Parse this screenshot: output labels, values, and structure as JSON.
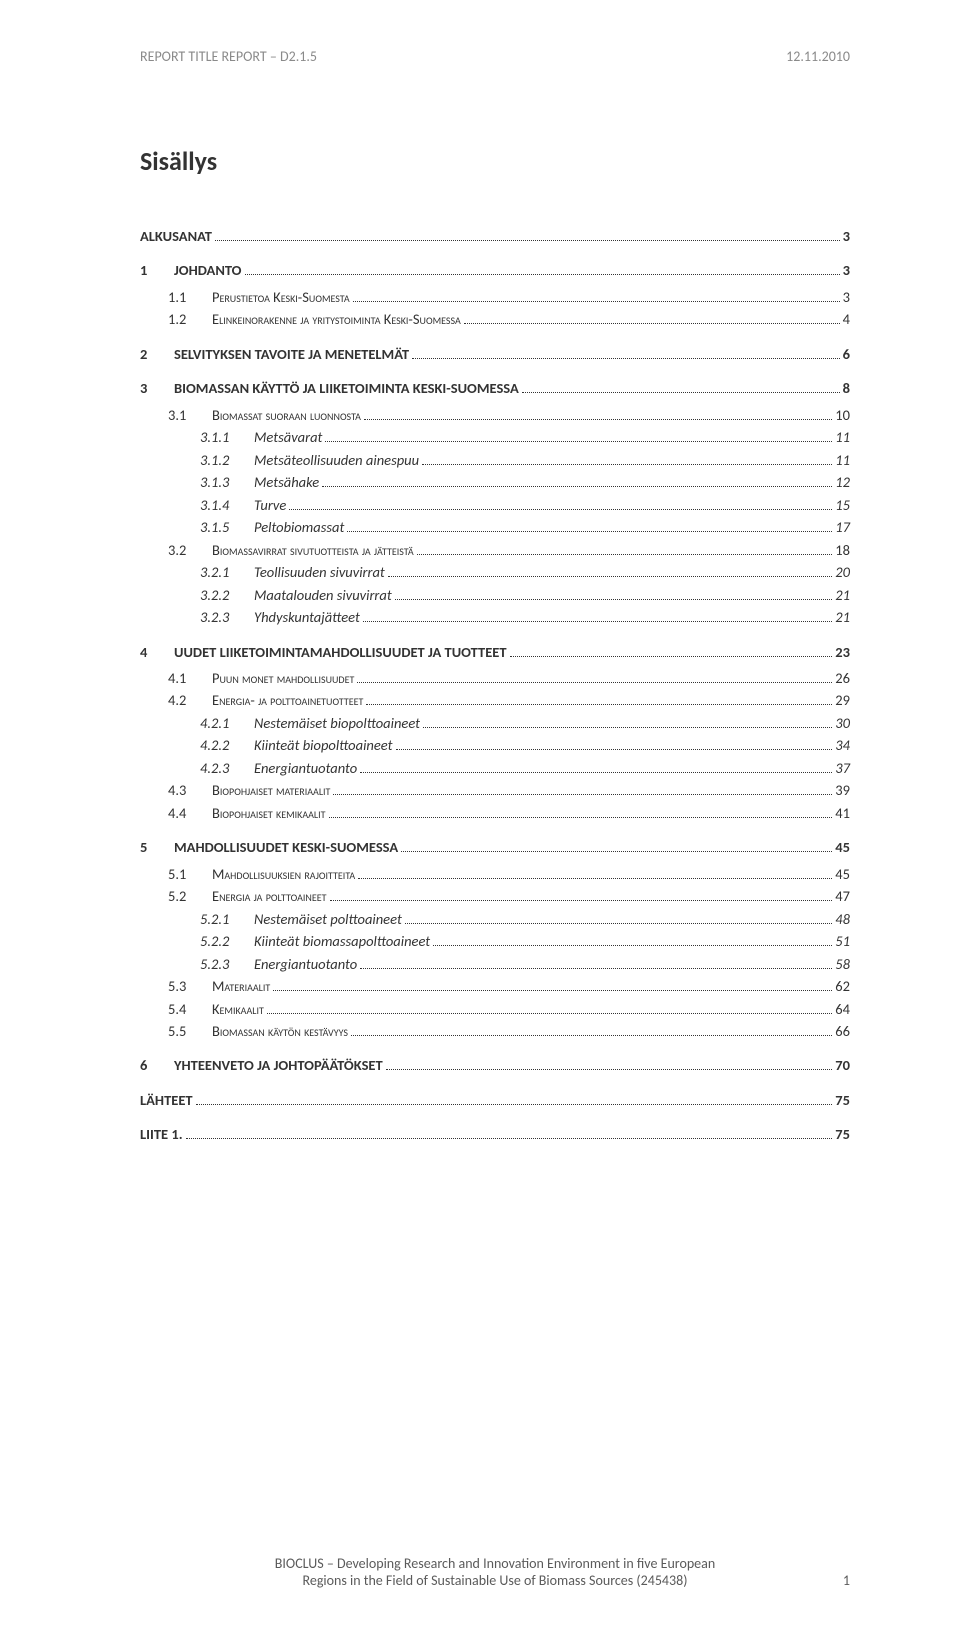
{
  "header": {
    "left": "REPORT TITLE REPORT – D2.1.5",
    "right": "12.11.2010"
  },
  "title": "Sisällys",
  "toc": [
    {
      "level": 1,
      "num": "",
      "label": "ALKUSANAT",
      "page": "3",
      "noindent": true
    },
    {
      "level": 1,
      "num": "1",
      "label": "JOHDANTO",
      "page": "3"
    },
    {
      "level": 2,
      "num": "1.1",
      "label": "Perustietoa Keski-Suomesta",
      "page": "3",
      "sc": true
    },
    {
      "level": 2,
      "num": "1.2",
      "label": "Elinkeinorakenne ja yritystoiminta Keski-Suomessa",
      "page": "4",
      "sc": true
    },
    {
      "level": 1,
      "num": "2",
      "label": "SELVITYKSEN TAVOITE JA MENETELMÄT",
      "page": "6"
    },
    {
      "level": 1,
      "num": "3",
      "label": "BIOMASSAN KÄYTTÖ JA LIIKETOIMINTA KESKI-SUOMESSA",
      "page": "8"
    },
    {
      "level": 2,
      "num": "3.1",
      "label": "Biomassat suoraan luonnosta",
      "page": "10",
      "sc": true
    },
    {
      "level": 3,
      "num": "3.1.1",
      "label": "Metsävarat",
      "page": "11"
    },
    {
      "level": 3,
      "num": "3.1.2",
      "label": "Metsäteollisuuden ainespuu",
      "page": "11"
    },
    {
      "level": 3,
      "num": "3.1.3",
      "label": "Metsähake",
      "page": "12"
    },
    {
      "level": 3,
      "num": "3.1.4",
      "label": "Turve",
      "page": "15"
    },
    {
      "level": 3,
      "num": "3.1.5",
      "label": "Peltobiomassat",
      "page": "17"
    },
    {
      "level": 2,
      "num": "3.2",
      "label": "Biomassavirrat sivutuotteista ja jätteistä",
      "page": "18",
      "sc": true
    },
    {
      "level": 3,
      "num": "3.2.1",
      "label": "Teollisuuden sivuvirrat",
      "page": "20"
    },
    {
      "level": 3,
      "num": "3.2.2",
      "label": "Maatalouden sivuvirrat",
      "page": "21"
    },
    {
      "level": 3,
      "num": "3.2.3",
      "label": "Yhdyskuntajätteet",
      "page": "21"
    },
    {
      "level": 1,
      "num": "4",
      "label": "UUDET LIIKETOIMINTAMAHDOLLISUUDET JA TUOTTEET",
      "page": "23"
    },
    {
      "level": 2,
      "num": "4.1",
      "label": "Puun monet mahdollisuudet",
      "page": "26",
      "sc": true
    },
    {
      "level": 2,
      "num": "4.2",
      "label": "Energia- ja polttoainetuotteet",
      "page": "29",
      "sc": true
    },
    {
      "level": 3,
      "num": "4.2.1",
      "label": "Nestemäiset biopolttoaineet",
      "page": "30"
    },
    {
      "level": 3,
      "num": "4.2.2",
      "label": "Kiinteät biopolttoaineet",
      "page": "34"
    },
    {
      "level": 3,
      "num": "4.2.3",
      "label": "Energiantuotanto",
      "page": "37"
    },
    {
      "level": 2,
      "num": "4.3",
      "label": "Biopohjaiset materiaalit",
      "page": "39",
      "sc": true
    },
    {
      "level": 2,
      "num": "4.4",
      "label": "Biopohjaiset kemikaalit",
      "page": "41",
      "sc": true
    },
    {
      "level": 1,
      "num": "5",
      "label": "MAHDOLLISUUDET KESKI-SUOMESSA",
      "page": "45"
    },
    {
      "level": 2,
      "num": "5.1",
      "label": "Mahdollisuuksien rajoitteita",
      "page": "45",
      "sc": true
    },
    {
      "level": 2,
      "num": "5.2",
      "label": "Energia ja polttoaineet",
      "page": "47",
      "sc": true
    },
    {
      "level": 3,
      "num": "5.2.1",
      "label": "Nestemäiset polttoaineet",
      "page": "48"
    },
    {
      "level": 3,
      "num": "5.2.2",
      "label": "Kiinteät biomassapolttoaineet",
      "page": "51"
    },
    {
      "level": 3,
      "num": "5.2.3",
      "label": "Energiantuotanto",
      "page": "58"
    },
    {
      "level": 2,
      "num": "5.3",
      "label": "Materiaalit",
      "page": "62",
      "sc": true
    },
    {
      "level": 2,
      "num": "5.4",
      "label": "Kemikaalit",
      "page": "64",
      "sc": true
    },
    {
      "level": 2,
      "num": "5.5",
      "label": "Biomassan käytön kestävyys",
      "page": "66",
      "sc": true
    },
    {
      "level": 1,
      "num": "6",
      "label": "YHTEENVETO JA JOHTOPÄÄTÖKSET",
      "page": "70"
    },
    {
      "level": 1,
      "num": "",
      "label": "LÄHTEET",
      "page": "75",
      "noindent": true
    },
    {
      "level": 1,
      "num": "",
      "label": "LIITE 1.",
      "page": "75",
      "noindent": true
    }
  ],
  "footer": {
    "line1": "BIOCLUS – Developing Research and Innovation Environment in five European",
    "line2": "Regions in the Field of Sustainable Use of Biomass Sources (245438)",
    "pagenum": "1"
  }
}
